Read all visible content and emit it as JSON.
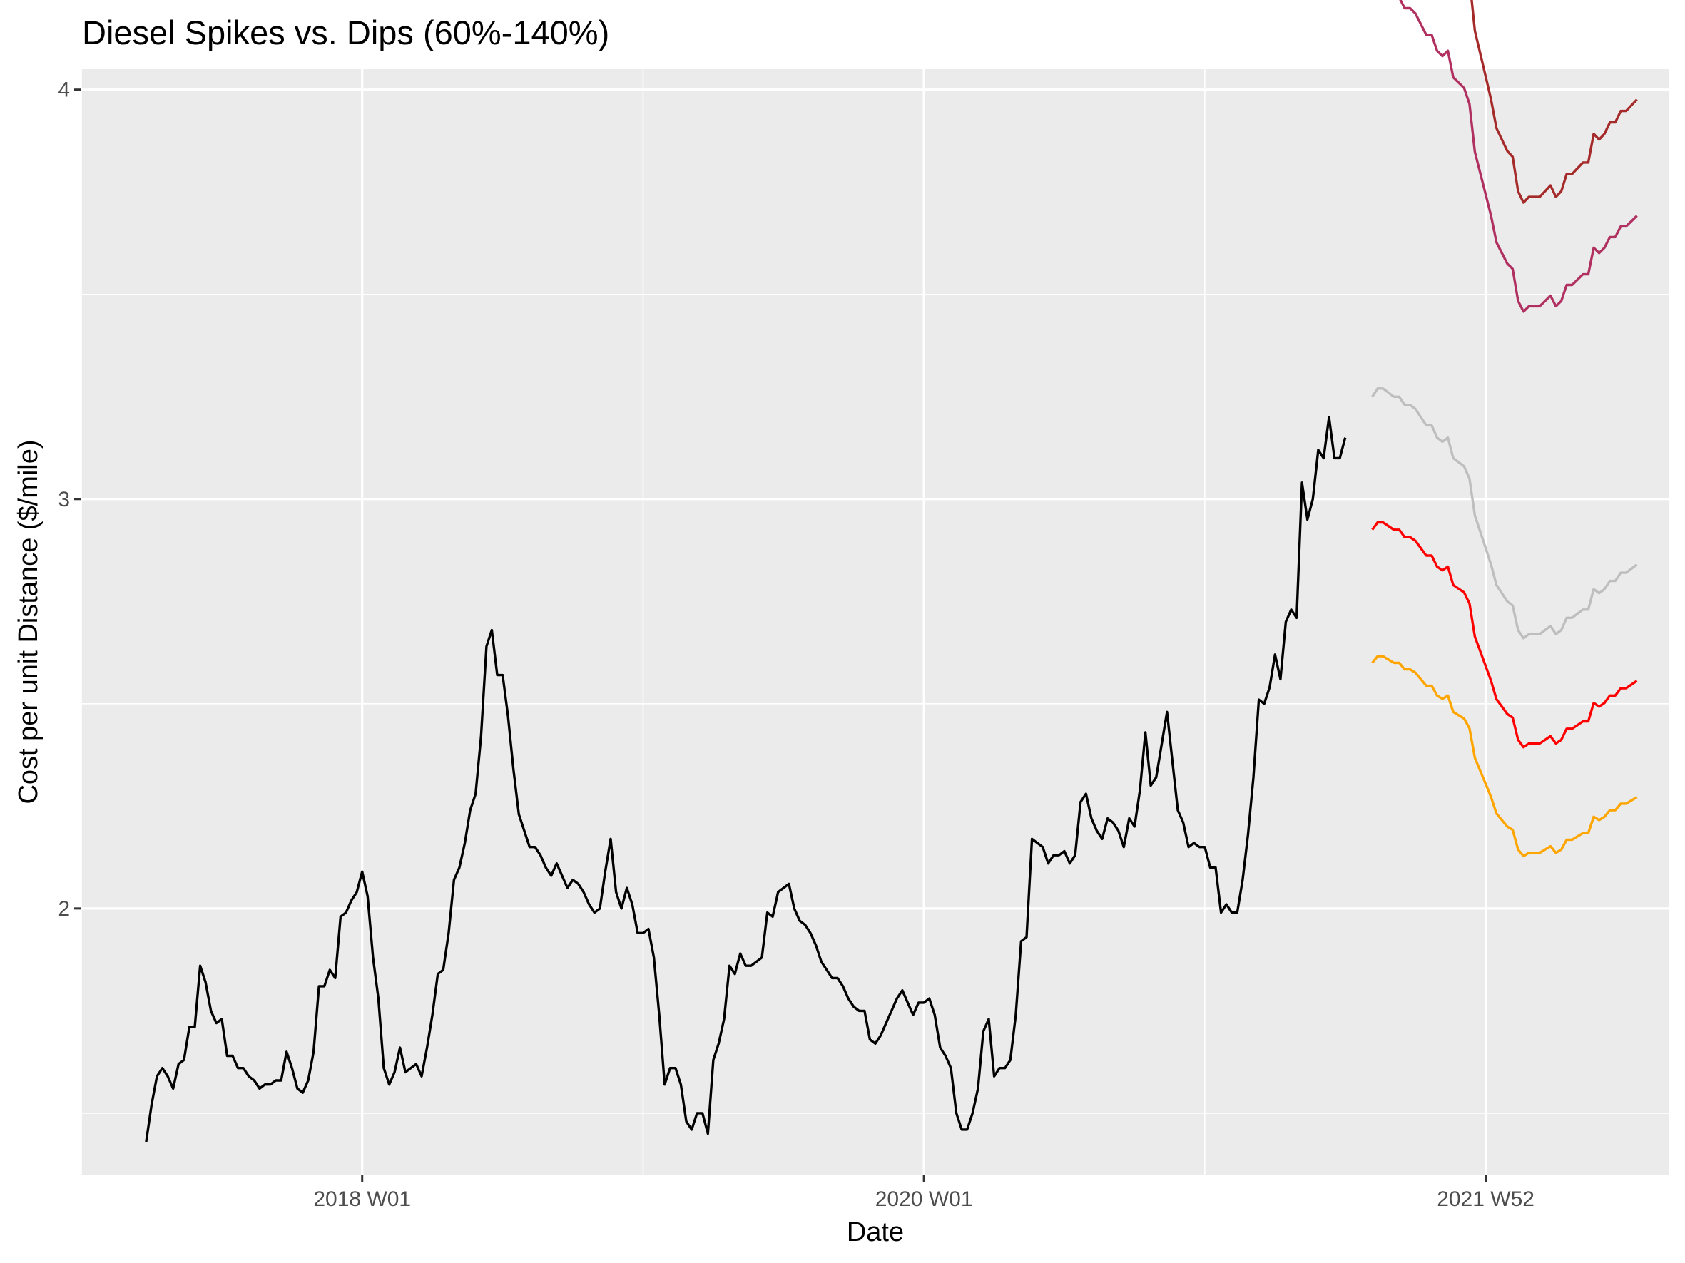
{
  "chart_data": {
    "type": "line",
    "title": "Diesel Spikes vs. Dips (60%-140%)",
    "xlabel": "Date",
    "ylabel": "Cost per unit Distance ($/mile)",
    "x_ticks": [
      {
        "label": "2018 W01",
        "week_index": 0
      },
      {
        "label": "2020 W01",
        "week_index": 104
      },
      {
        "label": "2021 W52",
        "week_index": 208
      }
    ],
    "x_minor_week_index": [
      52,
      156
    ],
    "xlim_week_index": [
      -52,
      242
    ],
    "y_ticks": [
      2,
      3,
      4
    ],
    "ylim": [
      1.35,
      4.05
    ],
    "grid": true,
    "panel_background": "#ebebeb",
    "grid_color": "#ffffff",
    "historical": {
      "name": "Diesel",
      "color": "#000000",
      "start_week_index": -40,
      "values": [
        1.43,
        1.52,
        1.59,
        1.61,
        1.59,
        1.56,
        1.62,
        1.63,
        1.71,
        1.71,
        1.86,
        1.82,
        1.75,
        1.72,
        1.73,
        1.64,
        1.64,
        1.61,
        1.61,
        1.59,
        1.58,
        1.56,
        1.57,
        1.57,
        1.58,
        1.58,
        1.65,
        1.61,
        1.56,
        1.55,
        1.58,
        1.65,
        1.81,
        1.81,
        1.85,
        1.83,
        1.98,
        1.99,
        2.02,
        2.04,
        2.09,
        2.03,
        1.88,
        1.78,
        1.61,
        1.57,
        1.6,
        1.66,
        1.6,
        1.61,
        1.62,
        1.59,
        1.66,
        1.74,
        1.84,
        1.85,
        1.94,
        2.07,
        2.1,
        2.16,
        2.24,
        2.28,
        2.42,
        2.64,
        2.68,
        2.57,
        2.57,
        2.47,
        2.34,
        2.23,
        2.19,
        2.15,
        2.15,
        2.13,
        2.1,
        2.08,
        2.11,
        2.08,
        2.05,
        2.07,
        2.06,
        2.04,
        2.01,
        1.99,
        2.0,
        2.09,
        2.17,
        2.04,
        2.0,
        2.05,
        2.01,
        1.94,
        1.94,
        1.95,
        1.88,
        1.74,
        1.57,
        1.61,
        1.61,
        1.57,
        1.48,
        1.46,
        1.5,
        1.5,
        1.45,
        1.63,
        1.67,
        1.73,
        1.86,
        1.84,
        1.89,
        1.86,
        1.86,
        1.87,
        1.88,
        1.99,
        1.98,
        2.04,
        2.05,
        2.06,
        2.0,
        1.97,
        1.96,
        1.94,
        1.91,
        1.87,
        1.85,
        1.83,
        1.83,
        1.81,
        1.78,
        1.76,
        1.75,
        1.75,
        1.68,
        1.67,
        1.69,
        1.72,
        1.75,
        1.78,
        1.8,
        1.77,
        1.74,
        1.77,
        1.77,
        1.78,
        1.74,
        1.66,
        1.64,
        1.61,
        1.5,
        1.46,
        1.46,
        1.5,
        1.56,
        1.7,
        1.73,
        1.59,
        1.61,
        1.61,
        1.63,
        1.74,
        1.92,
        1.93,
        2.17,
        2.16,
        2.15,
        2.11,
        2.13,
        2.13,
        2.14,
        2.11,
        2.13,
        2.26,
        2.28,
        2.22,
        2.19,
        2.17,
        2.22,
        2.21,
        2.19,
        2.15,
        2.22,
        2.2,
        2.29,
        2.43,
        2.3,
        2.32,
        2.4,
        2.48,
        2.36,
        2.24,
        2.21,
        2.15,
        2.16,
        2.15,
        2.15,
        2.1,
        2.1,
        1.99,
        2.01,
        1.99,
        1.99,
        2.07,
        2.18,
        2.32,
        2.51,
        2.5,
        2.54,
        2.62,
        2.56,
        2.7,
        2.73,
        2.71,
        3.04,
        2.95,
        3.0,
        3.12,
        3.1,
        3.2,
        3.1,
        3.1,
        3.15
      ]
    },
    "forecast_x_start_week_index": 187,
    "forecast_base": [
      3.25,
      3.27,
      3.27,
      3.26,
      3.25,
      3.25,
      3.23,
      3.23,
      3.22,
      3.2,
      3.18,
      3.18,
      3.15,
      3.14,
      3.15,
      3.1,
      3.09,
      3.08,
      3.05,
      2.96,
      2.92,
      2.88,
      2.84,
      2.79,
      2.77,
      2.75,
      2.74,
      2.68,
      2.66,
      2.67,
      2.67,
      2.67,
      2.68,
      2.69,
      2.67,
      2.68,
      2.71,
      2.71,
      2.72,
      2.73,
      2.73,
      2.78,
      2.77,
      2.78,
      2.8,
      2.8,
      2.82,
      2.82,
      2.83,
      2.84
    ],
    "series": [
      {
        "scale": 1.4,
        "color": "#a52a2a"
      },
      {
        "scale": 1.3,
        "color": "#b03060"
      },
      {
        "scale": 1.0,
        "color": "#bebebe"
      },
      {
        "scale": 0.9,
        "color": "#ff0000"
      },
      {
        "scale": 0.8,
        "color": "#ffa500"
      }
    ]
  }
}
